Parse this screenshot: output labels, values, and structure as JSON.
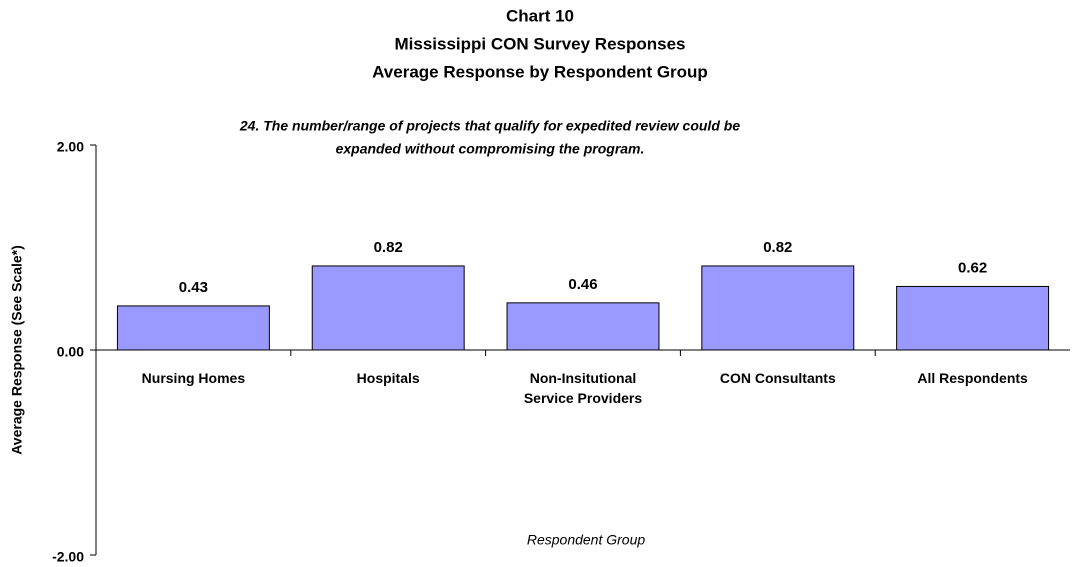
{
  "chart_data": {
    "type": "bar",
    "title": [
      "Chart 10",
      "Mississippi CON Survey Responses",
      "Average Response by Respondent Group"
    ],
    "subtitle": [
      "24. The number/range of projects that qualify for expedited review could be",
      "expanded without compromising the program."
    ],
    "categories": [
      "Nursing Homes",
      "Hospitals",
      "Non-Insitutional Service Providers",
      "CON Consultants",
      "All Respondents"
    ],
    "values": [
      0.43,
      0.82,
      0.46,
      0.82,
      0.62
    ],
    "color": "#9999ff",
    "ylim": [
      -2,
      2
    ],
    "yticks": [
      {
        "value": 2,
        "label": "2.00"
      },
      {
        "value": 0,
        "label": "0.00"
      },
      {
        "value": -2,
        "label": "-2.00"
      }
    ],
    "y_label": "Average Response (See Scale*)",
    "x_label": "Respondent Group"
  }
}
